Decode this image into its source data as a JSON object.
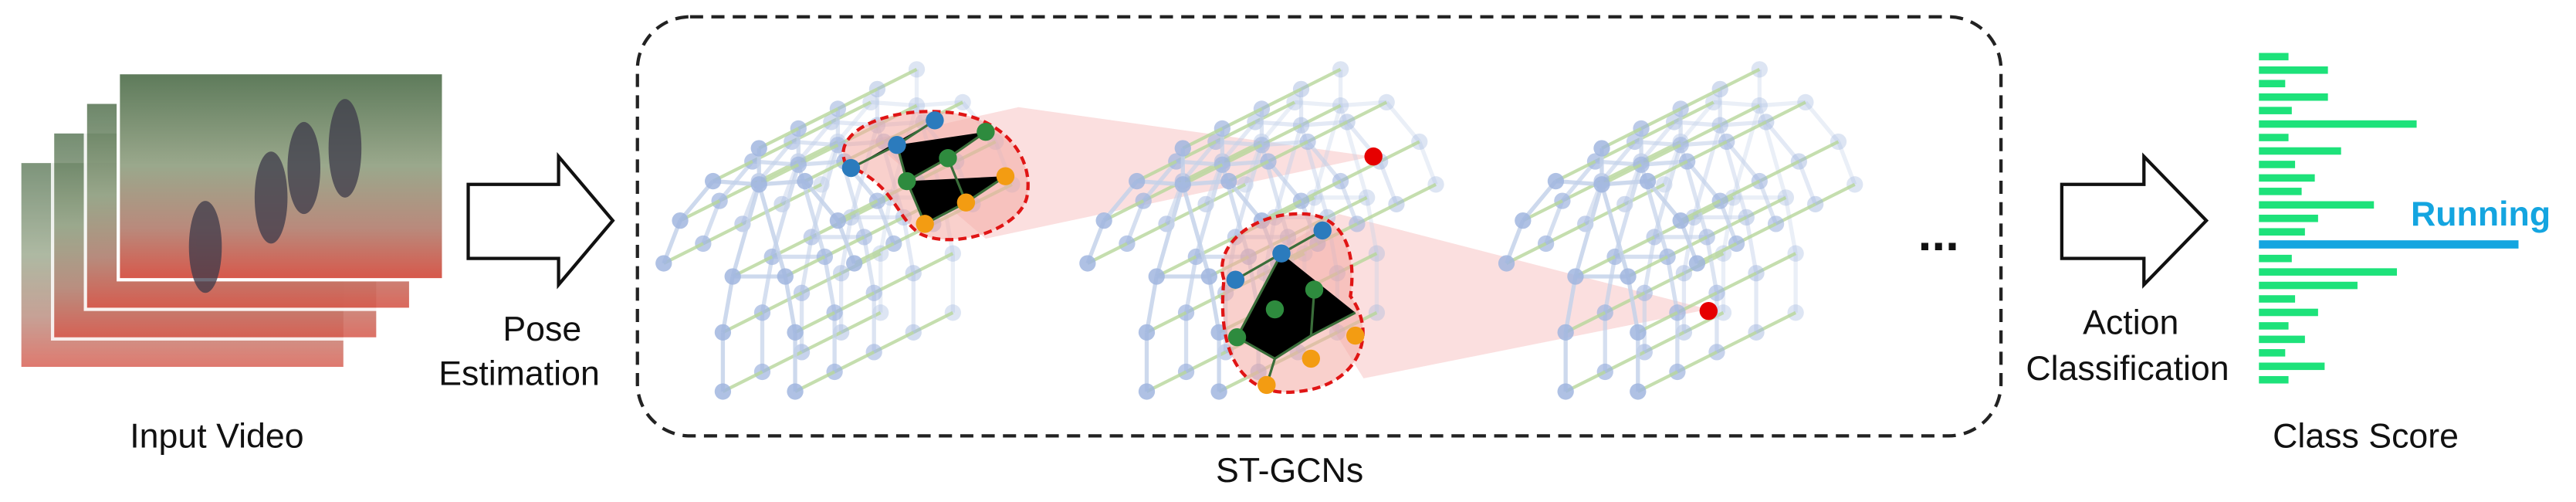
{
  "input": {
    "label": "Input Video"
  },
  "pose_estimation": {
    "lines": [
      "Pose",
      "Estimation"
    ]
  },
  "stgcn": {
    "label": "ST-GCNs",
    "ellipsis": "..."
  },
  "action_classification": {
    "lines": [
      "Action",
      "Classification"
    ]
  },
  "class_score": {
    "label": "Class Score",
    "top_class": "Running"
  }
}
